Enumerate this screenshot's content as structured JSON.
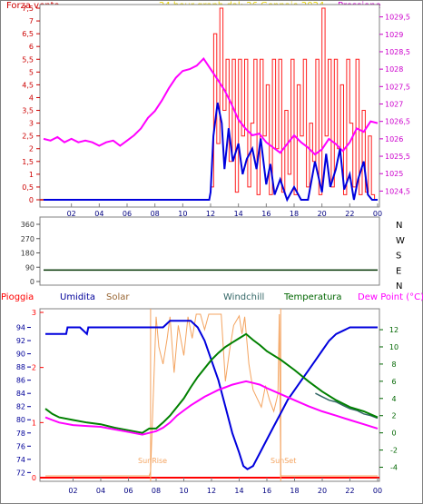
{
  "chart_data": [
    {
      "type": "line",
      "title": "24 hour graph dal:  26 Gennaio 2024",
      "left_label": "Forza vento",
      "right_label": "Pressione",
      "x_ticks": [
        "02",
        "04",
        "06",
        "08",
        "10",
        "12",
        "14",
        "16",
        "18",
        "20",
        "22",
        "00"
      ],
      "y_left_ticks": [
        "0",
        "0,5",
        "1",
        "1,5",
        "2",
        "2,5",
        "3",
        "3,5",
        "4",
        "4,5",
        "5",
        "5,5",
        "6",
        "6,5",
        "7",
        "7,5"
      ],
      "y_right_ticks": [
        "1024,5",
        "1025",
        "1025,5",
        "1026",
        "1026,5",
        "1027",
        "1027,5",
        "1028",
        "1028,5",
        "1029",
        "1029,5"
      ],
      "ylim_left": [
        0,
        7.5
      ],
      "ylim_right": [
        1024.25,
        1029.75
      ],
      "colors": {
        "wind_gust": "#ff2020",
        "wind_speed": "#0000dd",
        "pressure": "#ff00ff"
      },
      "series": [
        {
          "axis": "right",
          "color": "#ff00ff",
          "x": [
            0,
            0.5,
            1,
            1.5,
            2,
            2.5,
            3,
            3.5,
            4,
            4.5,
            5,
            5.5,
            6,
            6.5,
            7,
            7.5,
            8,
            8.5,
            9,
            9.5,
            10,
            10.5,
            11,
            11.5,
            12,
            12.5,
            13,
            13.5,
            14,
            14.5,
            15,
            15.5,
            16,
            16.5,
            17,
            17.5,
            18,
            18.5,
            19,
            19.5,
            20,
            20.5,
            21,
            21.5,
            22,
            22.5,
            23,
            23.5,
            24
          ],
          "values": [
            1026.0,
            1025.95,
            1026.05,
            1025.9,
            1026.0,
            1025.9,
            1025.95,
            1025.9,
            1025.8,
            1025.9,
            1025.95,
            1025.8,
            1025.95,
            1026.1,
            1026.3,
            1026.6,
            1026.8,
            1027.1,
            1027.45,
            1027.75,
            1027.95,
            1028.0,
            1028.1,
            1028.3,
            1028.0,
            1027.7,
            1027.4,
            1027.0,
            1026.55,
            1026.3,
            1026.1,
            1026.15,
            1025.9,
            1025.75,
            1025.6,
            1025.85,
            1026.1,
            1025.9,
            1025.75,
            1025.55,
            1025.7,
            1026.0,
            1025.85,
            1025.65,
            1025.9,
            1026.3,
            1026.2,
            1026.5,
            1026.45
          ]
        },
        {
          "axis": "left",
          "color": "#0000dd",
          "x": [
            0,
            11.9,
            12.0,
            12.2,
            12.5,
            12.8,
            13.0,
            13.3,
            13.6,
            14.0,
            14.3,
            14.6,
            15.0,
            15.3,
            15.6,
            16.0,
            16.3,
            16.6,
            17.0,
            17.5,
            18.0,
            18.5,
            19.0,
            19.5,
            20.0,
            20.3,
            20.6,
            21.0,
            21.3,
            21.6,
            22.0,
            22.3,
            22.6,
            23.0,
            23.3,
            23.6,
            24
          ],
          "values": [
            0,
            0,
            0.3,
            2.5,
            3.8,
            3.0,
            1.2,
            2.8,
            1.5,
            2.2,
            1.0,
            1.6,
            2.0,
            1.2,
            2.4,
            0.6,
            1.4,
            0.2,
            0.8,
            0,
            0.5,
            0,
            0,
            1.5,
            0.3,
            1.8,
            0.5,
            1.2,
            2.0,
            0.4,
            1.0,
            0,
            0.8,
            1.5,
            0.2,
            0,
            0
          ]
        }
      ],
      "wind_gust": {
        "axis": "left",
        "color": "#ff2020",
        "values": [
          0.5,
          6.5,
          2.2,
          7.5,
          3.5,
          5.5,
          1.5,
          5.5,
          0.3,
          5.5,
          2.5,
          5.5,
          0.5,
          3.0,
          5.5,
          0.2,
          5.5,
          2.5,
          4.5,
          0.2,
          5.5,
          2.0,
          5.5,
          0.3,
          3.5,
          1.0,
          5.5,
          0.2,
          4.5,
          2.5,
          5.5,
          0.5,
          3.0,
          1.5,
          5.5,
          0.2,
          7.5,
          2.5,
          5.5,
          0.5,
          5.5,
          2.0,
          4.5,
          0.2,
          5.5,
          3.0,
          0.5,
          5.5,
          0.2,
          3.5,
          0.3,
          2.5,
          0.2,
          0.0
        ],
        "x_start": 12.0,
        "x_end": 24.0
      }
    },
    {
      "type": "line",
      "title": "",
      "right_labels": [
        "N",
        "W",
        "S",
        "E",
        "N"
      ],
      "y_ticks": [
        "360",
        "270",
        "180",
        "90",
        "0"
      ],
      "ylim": [
        0,
        360
      ],
      "series": [
        {
          "color": "#003300",
          "x": [
            0,
            24
          ],
          "values": [
            72,
            72
          ]
        }
      ]
    },
    {
      "type": "line",
      "legend": [
        "Pioggia",
        "Umidita",
        "Solar",
        "Windchill",
        "Temperatura",
        "Dew Point (°C)"
      ],
      "legend_colors": [
        "#ff0000",
        "#000099",
        "#996633",
        "#336666",
        "#006600",
        "#ff00ff"
      ],
      "left_rain_ticks": [
        "0",
        "1",
        "2",
        "3"
      ],
      "humidity_ticks": [
        "72",
        "74",
        "76",
        "78",
        "80",
        "82",
        "84",
        "86",
        "88",
        "90",
        "92",
        "94"
      ],
      "temp_ticks": [
        "-4",
        "-2",
        "0",
        "2",
        "4",
        "6",
        "8",
        "10",
        "12"
      ],
      "x_ticks": [
        "02",
        "04",
        "06",
        "08",
        "10",
        "12",
        "14",
        "16",
        "18",
        "20",
        "22",
        "00"
      ],
      "humidity_lim": [
        71.5,
        96
      ],
      "temp_lim": [
        -5,
        13.8
      ],
      "sunrise_label": "SunRise",
      "sunset_label": "SunSet",
      "sunrise_hour": 7.6,
      "sunset_hour": 17.0,
      "series": [
        {
          "name": "Umidita",
          "axis": "humidity",
          "color": "#0000dd",
          "x": [
            0,
            1.5,
            1.6,
            2.5,
            3.0,
            3.1,
            6.0,
            6.5,
            7.0,
            8.5,
            9.0,
            10.0,
            10.5,
            11.0,
            11.5,
            12.0,
            12.5,
            13.0,
            13.5,
            14.0,
            14.3,
            14.6,
            15.0,
            15.5,
            16.0,
            16.5,
            17.0,
            17.5,
            18.0,
            18.5,
            19.0,
            19.5,
            20.0,
            20.5,
            21.0,
            21.5,
            22.0,
            24
          ],
          "values": [
            93,
            93,
            94,
            94,
            93,
            94,
            94,
            94,
            94,
            94,
            95,
            95,
            95,
            94,
            92,
            89,
            86,
            82,
            78,
            75,
            73,
            72.5,
            73,
            75,
            77,
            79,
            81,
            83,
            84.5,
            86,
            87.5,
            89,
            90.5,
            92,
            93,
            93.5,
            94,
            94
          ]
        },
        {
          "name": "Temperatura",
          "axis": "temp",
          "color": "#008000",
          "x": [
            0,
            0.5,
            1,
            2,
            3,
            4,
            5,
            6,
            7,
            7.5,
            8,
            8.5,
            9,
            9.5,
            10,
            10.5,
            11,
            11.5,
            12,
            12.5,
            13,
            13.5,
            14,
            14.5,
            15,
            15.5,
            16,
            17,
            18,
            19,
            20,
            21,
            22,
            23,
            24
          ],
          "values": [
            2.8,
            2.2,
            1.8,
            1.5,
            1.2,
            1.0,
            0.6,
            0.3,
            0.0,
            0.5,
            0.5,
            1.2,
            2.0,
            3.0,
            4.0,
            5.3,
            6.5,
            7.5,
            8.5,
            9.3,
            10.0,
            10.5,
            11.0,
            11.5,
            10.8,
            10.2,
            9.5,
            8.5,
            7.3,
            6.0,
            4.8,
            3.8,
            3.0,
            2.5,
            1.8
          ]
        },
        {
          "name": "Dew Point (°C)",
          "axis": "temp",
          "color": "#ff00ff",
          "x": [
            0,
            0.5,
            1,
            2,
            3,
            4,
            5,
            6,
            7,
            7.5,
            8,
            8.5,
            9,
            9.5,
            10,
            10.5,
            11,
            11.5,
            12,
            12.5,
            13,
            13.5,
            14,
            14.5,
            15,
            15.5,
            16,
            17,
            18,
            19,
            20,
            21,
            22,
            23,
            24
          ],
          "values": [
            1.8,
            1.5,
            1.2,
            0.9,
            0.8,
            0.7,
            0.4,
            0.1,
            -0.2,
            0.0,
            0.2,
            0.6,
            1.2,
            2.0,
            2.6,
            3.2,
            3.7,
            4.2,
            4.6,
            5.0,
            5.3,
            5.6,
            5.8,
            6.0,
            5.8,
            5.6,
            5.2,
            4.5,
            3.8,
            3.1,
            2.5,
            2.0,
            1.5,
            1.0,
            0.5
          ]
        }
      ],
      "solar": {
        "axis": "temp",
        "color": "#f4a460",
        "x": [
          0,
          7.5,
          7.6,
          8.0,
          8.2,
          8.5,
          8.8,
          9.0,
          9.3,
          9.6,
          10.0,
          10.3,
          10.6,
          10.9,
          11.2,
          11.5,
          11.8,
          12.1,
          12.4,
          12.7,
          13.0,
          13.3,
          13.6,
          14.0,
          14.2,
          14.4,
          14.7,
          15.0,
          15.3,
          15.6,
          15.9,
          16.2,
          16.5,
          16.8,
          16.9,
          17.0,
          24
        ],
        "values": [
          -5,
          -5,
          -4.5,
          13.5,
          10,
          8,
          11,
          13.5,
          7,
          12.5,
          9,
          13.5,
          11,
          13.8,
          13.8,
          12,
          13.8,
          13.8,
          13.8,
          13.8,
          6,
          9.5,
          12.5,
          13.6,
          11.5,
          13.5,
          8,
          5,
          4,
          3,
          5.5,
          3.8,
          2.5,
          4.5,
          13.8,
          -5,
          -5
        ]
      },
      "windchill": {
        "axis": "temp",
        "color": "#336666",
        "x": [
          19.5,
          20,
          20.5,
          21,
          21.5,
          22,
          22.5,
          23,
          23.5,
          24
        ],
        "values": [
          4.6,
          4.2,
          3.8,
          3.6,
          3.2,
          2.8,
          2.6,
          2.2,
          2.0,
          1.7
        ]
      }
    }
  ]
}
